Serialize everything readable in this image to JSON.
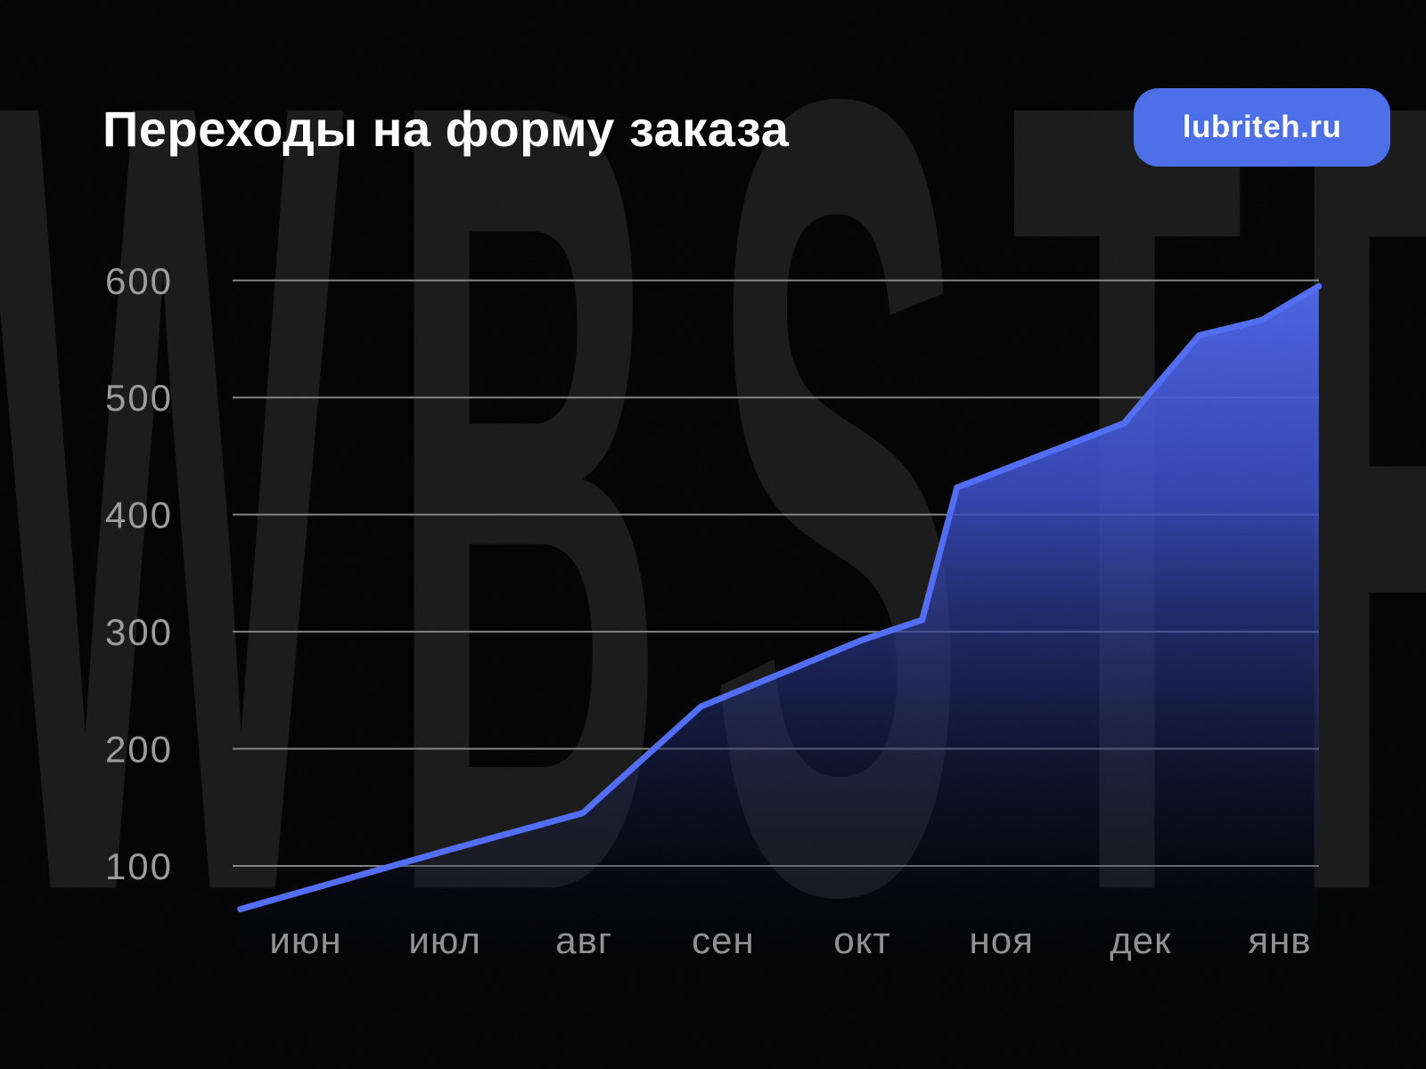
{
  "header": {
    "title": "Переходы на форму заказа",
    "badge": {
      "label": "lubriteh.ru",
      "bg_color": "#4a6de9",
      "text_color": "#ffffff"
    }
  },
  "watermark": {
    "text": "WBSTR",
    "color": "#181818"
  },
  "chart_data": {
    "type": "area",
    "title": "Переходы на форму заказа",
    "categories": [
      "июн",
      "июл",
      "авг",
      "сен",
      "окт",
      "ноя",
      "дек",
      "янв"
    ],
    "values": [
      63,
      115,
      145,
      236,
      293,
      430,
      478,
      590
    ],
    "ylim": [
      0,
      600
    ],
    "yticks": [
      100,
      200,
      300,
      400,
      500,
      600
    ],
    "xlabel": "",
    "ylabel": "",
    "grid": "horizontal",
    "legend": "none",
    "line_color": "#4f6cf7",
    "grid_color": "#8f8f8f",
    "axis_label_color": "#9b9b9b",
    "month_label_color": "#909090",
    "area_gradient": [
      "#5069f0",
      "#3a50cf",
      "#1b2668",
      "#02040f"
    ],
    "polyline": [
      {
        "m": -0.47,
        "v": 63
      },
      {
        "m": 1.07,
        "v": 115
      },
      {
        "m": 1.99,
        "v": 145
      },
      {
        "m": 2.84,
        "v": 236
      },
      {
        "m": 4.0,
        "v": 293
      },
      {
        "m": 4.43,
        "v": 310
      },
      {
        "m": 4.68,
        "v": 423
      },
      {
        "m": 5.88,
        "v": 478
      },
      {
        "m": 6.42,
        "v": 553
      },
      {
        "m": 6.87,
        "v": 566
      },
      {
        "m": 7.28,
        "v": 595
      }
    ]
  }
}
